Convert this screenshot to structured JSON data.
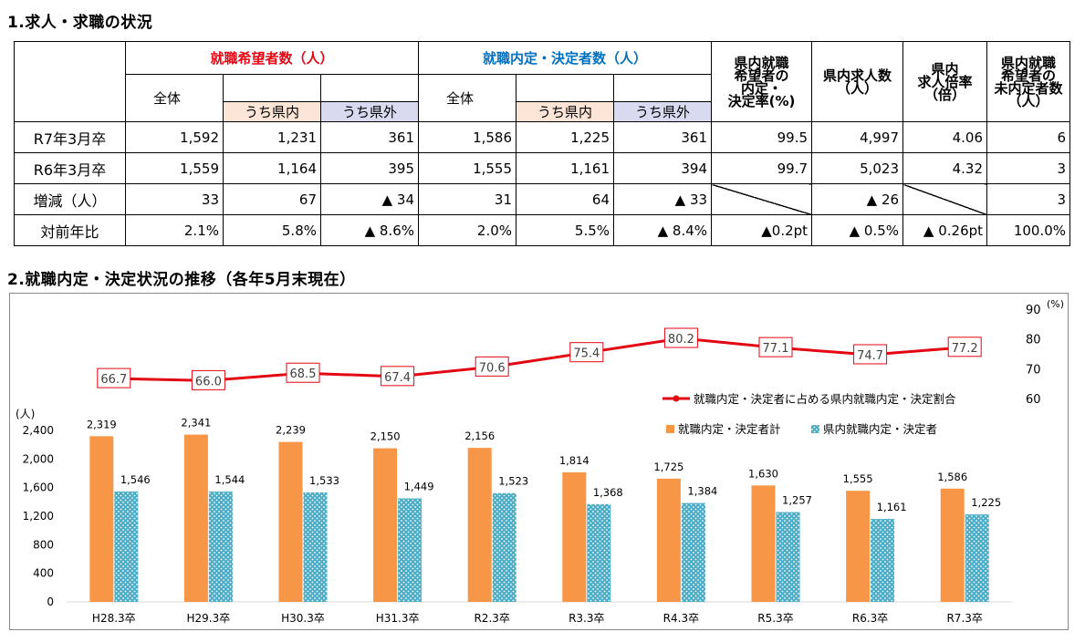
{
  "section1_title": "1.求人・求職の状況",
  "section2_title": "2.就職内定・決定状況の推移（各年5月末現在）",
  "table": {
    "group1": "就職希望者数（人）",
    "group2": "就職内定・決定者数（人）",
    "col_rate": "県内就職 希望者の 内定・ 決定率(%)",
    "col_jobs": "県内求人数 （人）",
    "col_ratio": "県内 求人倍率 （倍）",
    "col_unplaced": "県内就職 希望者の 未内定者数 （人）",
    "sub_all": "全体",
    "sub_in": "うち県内",
    "sub_out": "うち県外",
    "rows": [
      {
        "label": "R7年3月卒",
        "c1": "1,592",
        "c2": "1,231",
        "c3": "361",
        "c4": "1,586",
        "c5": "1,225",
        "c6": "361",
        "c7": "99.5",
        "c8": "4,997",
        "c9": "4.06",
        "c10": "6"
      },
      {
        "label": "R6年3月卒",
        "c1": "1,559",
        "c2": "1,164",
        "c3": "395",
        "c4": "1,555",
        "c5": "1,161",
        "c6": "394",
        "c7": "99.7",
        "c8": "5,023",
        "c9": "4.32",
        "c10": "3"
      },
      {
        "label": "増減（人）",
        "c1": "33",
        "c2": "67",
        "c3": "▲ 34",
        "c4": "31",
        "c5": "64",
        "c6": "▲ 33",
        "c7": "",
        "c8": "▲ 26",
        "c9": "",
        "c10": "3"
      },
      {
        "label": "対前年比",
        "c1": "2.1%",
        "c2": "5.8%",
        "c3": "▲ 8.6%",
        "c4": "2.0%",
        "c5": "5.5%",
        "c6": "▲ 8.4%",
        "c7": "▲0.2pt",
        "c8": "▲ 0.5%",
        "c9": "▲ 0.26pt",
        "c10": "100.0%"
      }
    ]
  },
  "colors": {
    "bar_total": "#f79646",
    "bar_pref": "#4bacc6",
    "line": "#e30613",
    "header_red": "#e30613",
    "header_blue": "#0070c0"
  },
  "chart_data": {
    "type": "bar",
    "categories": [
      "H28.3卒",
      "H29.3卒",
      "H30.3卒",
      "H31.3卒",
      "R2.3卒",
      "R3.3卒",
      "R4.3卒",
      "R5.3卒",
      "R6.3卒",
      "R7.3卒"
    ],
    "series": [
      {
        "name": "就職内定・決定者計",
        "type": "bar",
        "values": [
          2319,
          2341,
          2239,
          2150,
          2156,
          1814,
          1725,
          1630,
          1555,
          1586
        ],
        "labels": [
          "2,319",
          "2,341",
          "2,239",
          "2,150",
          "2,156",
          "1,814",
          "1,725",
          "1,630",
          "1,555",
          "1,586"
        ]
      },
      {
        "name": "県内就職内定・決定者",
        "type": "bar",
        "values": [
          1546,
          1544,
          1533,
          1449,
          1523,
          1368,
          1384,
          1257,
          1161,
          1225
        ],
        "labels": [
          "1,546",
          "1,544",
          "1,533",
          "1,449",
          "1,523",
          "1,368",
          "1,384",
          "1,257",
          "1,161",
          "1,225"
        ]
      },
      {
        "name": "就職内定・決定者に占める県内就職内定・決定割合",
        "type": "line",
        "axis": "right",
        "values": [
          66.7,
          66.0,
          68.5,
          67.4,
          70.6,
          75.4,
          80.2,
          77.1,
          74.7,
          77.2
        ],
        "labels": [
          "66.7",
          "66.0",
          "68.5",
          "67.4",
          "70.6",
          "75.4",
          "80.2",
          "77.1",
          "74.7",
          "77.2"
        ]
      }
    ],
    "left_axis": {
      "unit": "(人)",
      "ylim": [
        0,
        2400
      ],
      "ticks": [
        "0",
        "400",
        "800",
        "1,200",
        "1,600",
        "2,000",
        "2,400"
      ]
    },
    "right_axis": {
      "unit": "(%)",
      "ylim": [
        60,
        90
      ],
      "ticks": [
        "60",
        "70",
        "80",
        "90"
      ]
    },
    "legend_position": "right",
    "grid": false
  }
}
